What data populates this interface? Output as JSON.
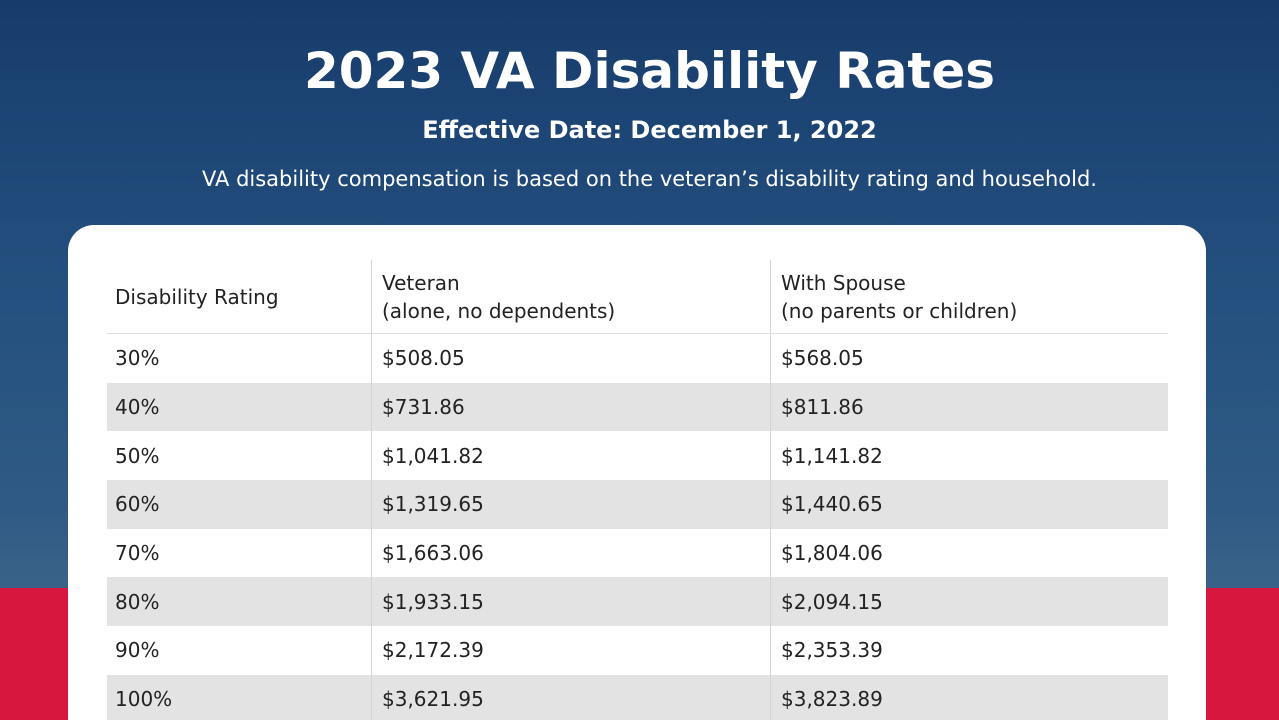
{
  "header": {
    "title": "2023 VA Disability Rates",
    "effective_date": "Effective Date: December 1, 2022",
    "description": "VA disability compensation is based on the veteran’s disability rating and household."
  },
  "table": {
    "columns": [
      {
        "label": "Disability Rating"
      },
      {
        "label": "Veteran",
        "note": "(alone, no dependents)"
      },
      {
        "label": "With Spouse",
        "note": "(no parents or children)"
      }
    ],
    "rows": [
      [
        "30%",
        "$508.05",
        "$568.05"
      ],
      [
        "40%",
        "$731.86",
        "$811.86"
      ],
      [
        "50%",
        "$1,041.82",
        "$1,141.82"
      ],
      [
        "60%",
        "$1,319.65",
        "$1,440.65"
      ],
      [
        "70%",
        "$1,663.06",
        "$1,804.06"
      ],
      [
        "80%",
        "$1,933.15",
        "$2,094.15"
      ],
      [
        "90%",
        "$2,172.39",
        "$2,353.39"
      ],
      [
        "100%",
        "$3,621.95",
        "$3,823.89"
      ]
    ]
  }
}
